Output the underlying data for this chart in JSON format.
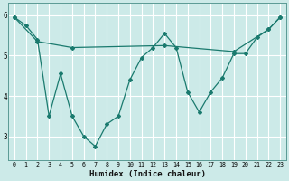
{
  "xlabel": "Humidex (Indice chaleur)",
  "bg_color": "#cceae8",
  "line_color": "#1a7a6e",
  "grid_color": "#ffffff",
  "xlim": [
    -0.5,
    23.5
  ],
  "ylim": [
    2.4,
    6.3
  ],
  "yticks": [
    3,
    4,
    5,
    6
  ],
  "xticks": [
    0,
    1,
    2,
    3,
    4,
    5,
    6,
    7,
    8,
    9,
    10,
    11,
    12,
    13,
    14,
    15,
    16,
    17,
    18,
    19,
    20,
    21,
    22,
    23
  ],
  "line1_x": [
    0,
    1,
    2,
    3,
    4,
    5,
    6,
    7,
    8,
    9,
    10,
    11,
    12,
    13,
    14,
    15,
    16,
    17,
    18,
    19,
    20,
    21,
    22,
    23
  ],
  "line1_y": [
    5.95,
    5.75,
    5.4,
    3.5,
    4.55,
    3.5,
    3.0,
    2.75,
    3.3,
    3.5,
    4.4,
    4.95,
    5.2,
    5.55,
    5.2,
    4.1,
    3.6,
    4.1,
    4.45,
    5.05,
    5.05,
    5.45,
    5.65,
    5.95
  ],
  "line2_x": [
    0,
    2,
    5,
    13,
    19,
    22,
    23
  ],
  "line2_y": [
    5.95,
    5.35,
    5.2,
    5.25,
    5.1,
    5.65,
    5.95
  ]
}
